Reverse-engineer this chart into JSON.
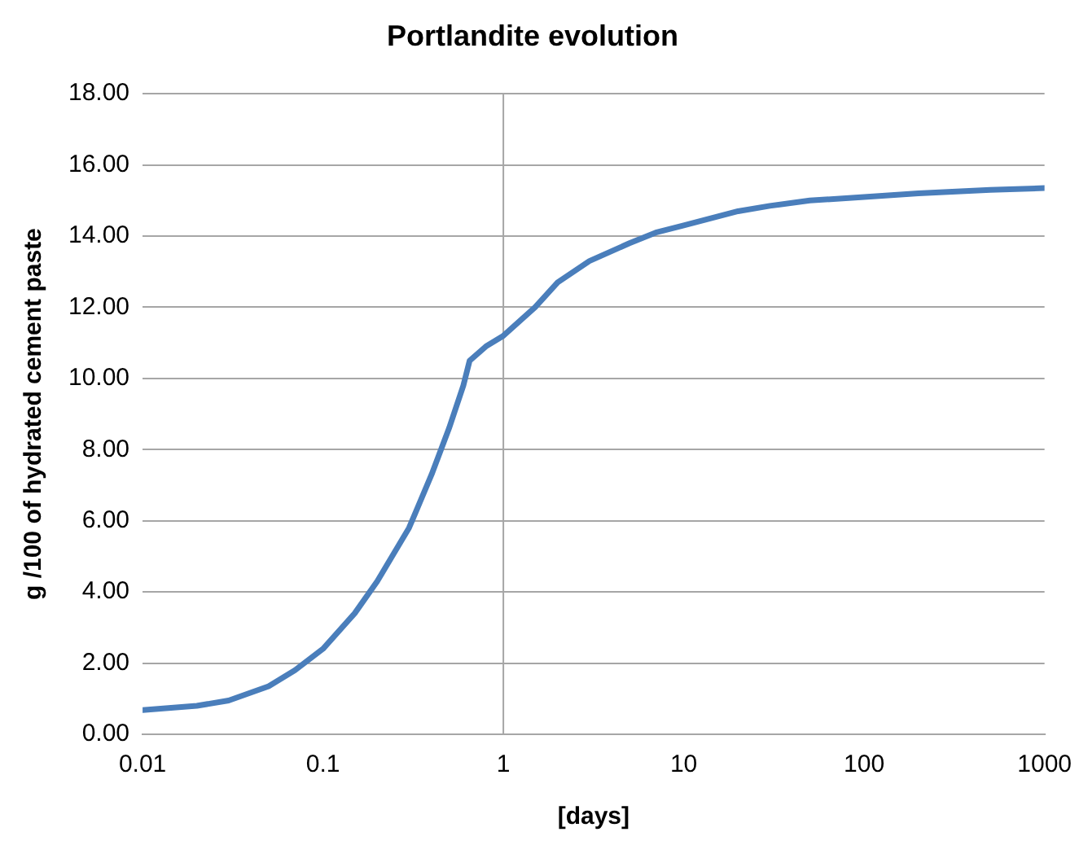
{
  "chart_data": {
    "type": "line",
    "title": "Portlandite evolution",
    "xlabel": "[days]",
    "ylabel": "g /100 of hydrated cement paste",
    "log": "x",
    "xlim": [
      0.01,
      1000
    ],
    "xticks": [
      0.01,
      0.1,
      1,
      10,
      100,
      1000
    ],
    "ylim": [
      0,
      18
    ],
    "yticks": [
      {
        "value": 0,
        "label": "0.00"
      },
      {
        "value": 2,
        "label": "2.00"
      },
      {
        "value": 4,
        "label": "4.00"
      },
      {
        "value": 6,
        "label": "6.00"
      },
      {
        "value": 8,
        "label": "8.00"
      },
      {
        "value": 10,
        "label": "10.00"
      },
      {
        "value": 12,
        "label": "12.00"
      },
      {
        "value": 14,
        "label": "14.00"
      },
      {
        "value": 16,
        "label": "16.00"
      },
      {
        "value": 18,
        "label": "18.00"
      }
    ],
    "grid": "y",
    "marker": "none",
    "line_style": "solid",
    "ref_lines": [
      {
        "axis": "x",
        "value": 1,
        "color": "#a6a6a6"
      }
    ],
    "x": [
      0.01,
      0.02,
      0.03,
      0.05,
      0.07,
      0.1,
      0.15,
      0.2,
      0.3,
      0.4,
      0.5,
      0.6,
      0.65,
      0.8,
      1,
      1.5,
      2,
      3,
      5,
      7,
      10,
      20,
      30,
      50,
      100,
      200,
      500,
      1000
    ],
    "series": [
      {
        "color": "#4a7ebb",
        "values": [
          0.68,
          0.8,
          0.95,
          1.35,
          1.8,
          2.4,
          3.4,
          4.3,
          5.8,
          7.3,
          8.6,
          9.8,
          10.5,
          10.9,
          11.2,
          12.0,
          12.7,
          13.3,
          13.8,
          14.1,
          14.3,
          14.7,
          14.85,
          15.0,
          15.1,
          15.2,
          15.3,
          15.35
        ]
      }
    ]
  }
}
